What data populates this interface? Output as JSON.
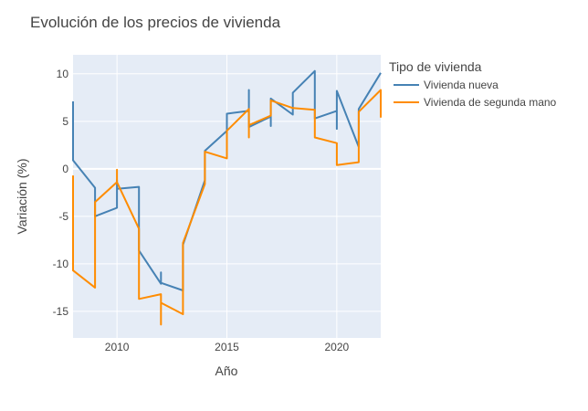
{
  "chart_data": {
    "type": "line",
    "title": "Evolución de los precios de vivienda",
    "xlabel": "Año",
    "ylabel": "Variación (%)",
    "xlim": [
      2008,
      2022
    ],
    "ylim": [
      -17.8,
      12
    ],
    "x_ticks": [
      2010,
      2015,
      2020
    ],
    "y_ticks": [
      -15,
      -10,
      -5,
      0,
      5,
      10
    ],
    "grid": true,
    "plot_background": "#e5ecf6",
    "legend": {
      "title": "Tipo de vivienda",
      "placement": "right"
    },
    "series": [
      {
        "name": "Vivienda nueva",
        "color": "#4682b4",
        "points": [
          [
            2008,
            7.1
          ],
          [
            2008,
            0.9
          ],
          [
            2009,
            -2.0
          ],
          [
            2009,
            -5.0
          ],
          [
            2010,
            -4.1
          ],
          [
            2010,
            -1.2
          ],
          [
            2010,
            -2.1
          ],
          [
            2011,
            -1.9
          ],
          [
            2011,
            -7.0
          ],
          [
            2011,
            -8.6
          ],
          [
            2012,
            -12.1
          ],
          [
            2012,
            -10.9
          ],
          [
            2012,
            -12.0
          ],
          [
            2013,
            -12.8
          ],
          [
            2013,
            -8.0
          ],
          [
            2014,
            -1.2
          ],
          [
            2014,
            1.9
          ],
          [
            2015,
            4.0
          ],
          [
            2015,
            5.8
          ],
          [
            2016,
            6.1
          ],
          [
            2016,
            8.3
          ],
          [
            2016,
            4.4
          ],
          [
            2017,
            5.5
          ],
          [
            2017,
            4.5
          ],
          [
            2017,
            7.4
          ],
          [
            2018,
            5.7
          ],
          [
            2018,
            8.0
          ],
          [
            2019,
            10.3
          ],
          [
            2019,
            5.3
          ],
          [
            2020,
            6.1
          ],
          [
            2020,
            4.2
          ],
          [
            2020,
            8.2
          ],
          [
            2021,
            2.3
          ],
          [
            2021,
            6.3
          ],
          [
            2022,
            10.1
          ]
        ]
      },
      {
        "name": "Vivienda de segunda mano",
        "color": "#ff8c00",
        "points": [
          [
            2008,
            -0.7
          ],
          [
            2008,
            -10.7
          ],
          [
            2009,
            -12.5
          ],
          [
            2009,
            -3.5
          ],
          [
            2010,
            -1.4
          ],
          [
            2010,
            -0.1
          ],
          [
            2010,
            -1.4
          ],
          [
            2011,
            -6.3
          ],
          [
            2011,
            -13.7
          ],
          [
            2012,
            -13.2
          ],
          [
            2012,
            -16.4
          ],
          [
            2012,
            -14.1
          ],
          [
            2013,
            -15.3
          ],
          [
            2013,
            -7.8
          ],
          [
            2014,
            -1.6
          ],
          [
            2014,
            1.8
          ],
          [
            2015,
            1.1
          ],
          [
            2015,
            4.0
          ],
          [
            2016,
            6.3
          ],
          [
            2016,
            3.3
          ],
          [
            2016,
            4.6
          ],
          [
            2017,
            5.6
          ],
          [
            2017,
            7.2
          ],
          [
            2018,
            6.4
          ],
          [
            2019,
            6.2
          ],
          [
            2019,
            3.3
          ],
          [
            2020,
            2.7
          ],
          [
            2020,
            0.4
          ],
          [
            2021,
            0.7
          ],
          [
            2021,
            6.0
          ],
          [
            2022,
            8.3
          ],
          [
            2022,
            5.4
          ]
        ]
      }
    ]
  }
}
